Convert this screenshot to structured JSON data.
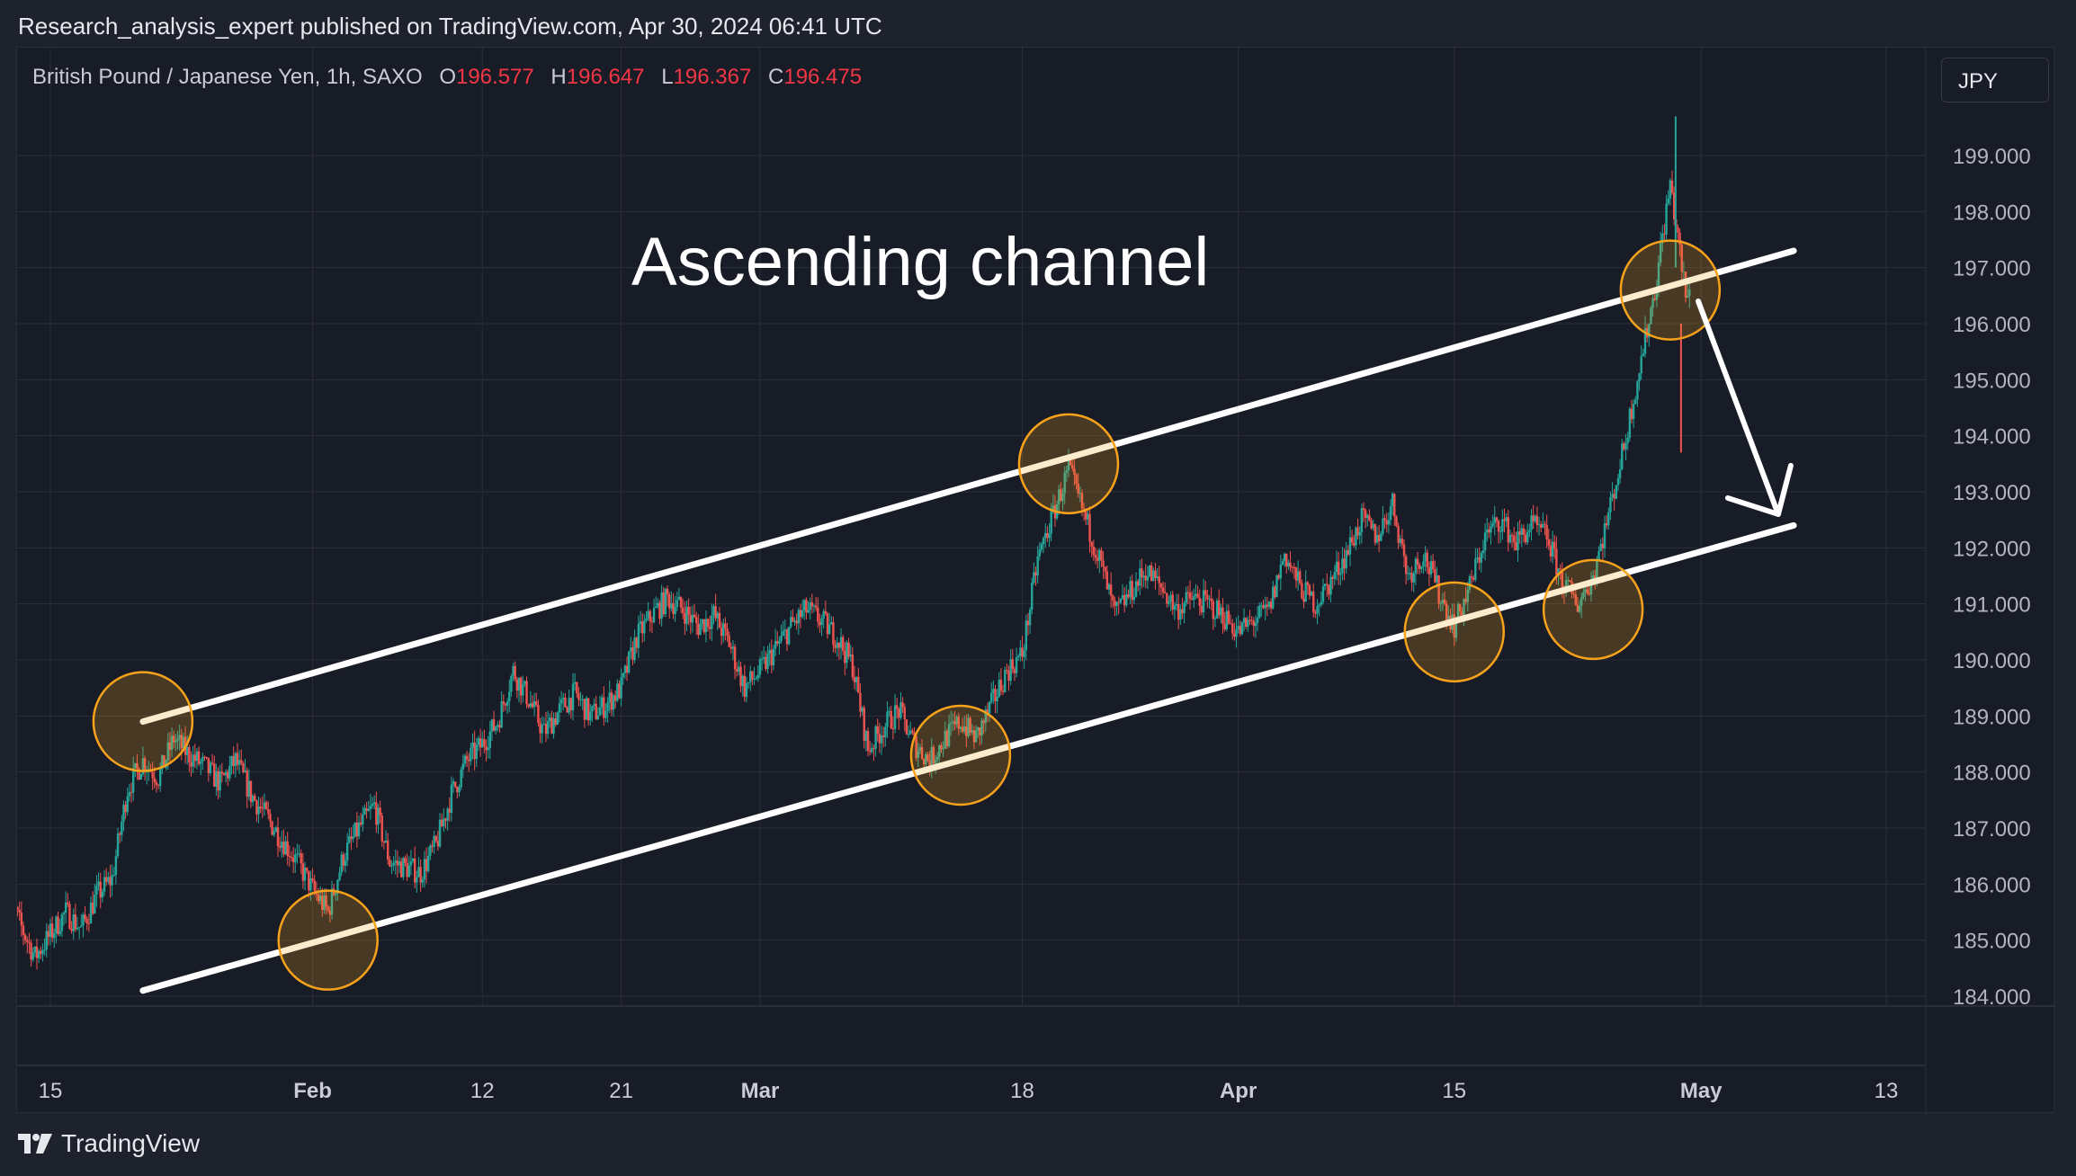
{
  "publisher_line": "Research_analysis_expert published on TradingView.com, Apr 30, 2024 06:41 UTC",
  "legend": {
    "symbol": "British Pound / Japanese Yen, 1h, SAXO",
    "open_label": "O",
    "open": "196.577",
    "high_label": "H",
    "high": "196.647",
    "low_label": "L",
    "low": "196.367",
    "close_label": "C",
    "close": "196.475"
  },
  "currency_button": "JPY",
  "annotation_title": "Ascending channel",
  "brand": "TradingView",
  "colors": {
    "background": "#181c27",
    "up": "#26a69a",
    "down": "#ef5350",
    "channel": "#ffffff",
    "circle": "#f7a21b",
    "grid": "#2a2e39",
    "axis_text": "#b2b5be",
    "legend_value": "#f23645"
  },
  "chart_data": {
    "type": "candlestick",
    "title": "",
    "ylim": [
      183.9,
      200.1
    ],
    "y_ticks": [
      "184.000",
      "185.000",
      "186.000",
      "187.000",
      "188.000",
      "189.000",
      "190.000",
      "191.000",
      "192.000",
      "193.000",
      "194.000",
      "195.000",
      "196.000",
      "197.000",
      "198.000",
      "199.000"
    ],
    "x_ticks": [
      "15",
      "Feb",
      "12",
      "21",
      "Mar",
      "18",
      "Apr",
      "15",
      "May",
      "13"
    ],
    "x_tick_dates": [
      "2024-01-15",
      "2024-02-01",
      "2024-02-12",
      "2024-02-21",
      "2024-03-01",
      "2024-03-18",
      "2024-04-01",
      "2024-04-15",
      "2024-05-01",
      "2024-05-13"
    ],
    "price_path": [
      [
        "2024-01-12",
        186.1
      ],
      [
        "2024-01-13",
        185.3
      ],
      [
        "2024-01-14",
        184.7
      ],
      [
        "2024-01-15",
        185.1
      ],
      [
        "2024-01-16",
        185.5
      ],
      [
        "2024-01-17",
        185.2
      ],
      [
        "2024-01-18",
        185.8
      ],
      [
        "2024-01-19",
        186.1
      ],
      [
        "2024-01-20",
        187.7
      ],
      [
        "2024-01-21",
        188.2
      ],
      [
        "2024-01-22",
        187.9
      ],
      [
        "2024-01-23",
        188.6
      ],
      [
        "2024-01-24",
        188.3
      ],
      [
        "2024-01-25",
        188.1
      ],
      [
        "2024-01-26",
        187.8
      ],
      [
        "2024-01-27",
        188.2
      ],
      [
        "2024-01-28",
        187.6
      ],
      [
        "2024-01-29",
        187.2
      ],
      [
        "2024-01-30",
        186.8
      ],
      [
        "2024-01-31",
        186.4
      ],
      [
        "2024-02-01",
        185.9
      ],
      [
        "2024-02-02",
        185.5
      ],
      [
        "2024-02-03",
        186.5
      ],
      [
        "2024-02-04",
        187.0
      ],
      [
        "2024-02-05",
        187.4
      ],
      [
        "2024-02-06",
        186.4
      ],
      [
        "2024-02-07",
        186.3
      ],
      [
        "2024-02-08",
        186.2
      ],
      [
        "2024-02-09",
        186.7
      ],
      [
        "2024-02-10",
        187.6
      ],
      [
        "2024-02-11",
        188.2
      ],
      [
        "2024-02-12",
        188.5
      ],
      [
        "2024-02-13",
        188.9
      ],
      [
        "2024-02-14",
        189.8
      ],
      [
        "2024-02-15",
        189.3
      ],
      [
        "2024-02-16",
        188.7
      ],
      [
        "2024-02-17",
        189.1
      ],
      [
        "2024-02-18",
        189.4
      ],
      [
        "2024-02-19",
        189.0
      ],
      [
        "2024-02-20",
        189.2
      ],
      [
        "2024-02-21",
        189.5
      ],
      [
        "2024-02-22",
        190.4
      ],
      [
        "2024-02-23",
        190.8
      ],
      [
        "2024-02-24",
        191.1
      ],
      [
        "2024-02-25",
        190.9
      ],
      [
        "2024-02-26",
        190.6
      ],
      [
        "2024-02-27",
        190.8
      ],
      [
        "2024-02-28",
        190.3
      ],
      [
        "2024-02-29",
        189.5
      ],
      [
        "2024-03-01",
        189.8
      ],
      [
        "2024-03-02",
        190.2
      ],
      [
        "2024-03-03",
        190.6
      ],
      [
        "2024-03-04",
        190.9
      ],
      [
        "2024-03-05",
        190.7
      ],
      [
        "2024-03-06",
        190.4
      ],
      [
        "2024-03-07",
        189.9
      ],
      [
        "2024-03-08",
        188.4
      ],
      [
        "2024-03-09",
        188.8
      ],
      [
        "2024-03-10",
        189.1
      ],
      [
        "2024-03-11",
        188.5
      ],
      [
        "2024-03-12",
        188.2
      ],
      [
        "2024-03-13",
        188.6
      ],
      [
        "2024-03-14",
        188.9
      ],
      [
        "2024-03-15",
        188.6
      ],
      [
        "2024-03-16",
        189.2
      ],
      [
        "2024-03-17",
        189.8
      ],
      [
        "2024-03-18",
        190.1
      ],
      [
        "2024-03-19",
        191.8
      ],
      [
        "2024-03-20",
        192.6
      ],
      [
        "2024-03-21",
        193.4
      ],
      [
        "2024-03-22",
        192.6
      ],
      [
        "2024-03-23",
        191.8
      ],
      [
        "2024-03-24",
        190.8
      ],
      [
        "2024-03-25",
        191.2
      ],
      [
        "2024-03-26",
        191.6
      ],
      [
        "2024-03-27",
        191.3
      ],
      [
        "2024-03-28",
        190.9
      ],
      [
        "2024-03-29",
        191.1
      ],
      [
        "2024-03-30",
        191.0
      ],
      [
        "2024-03-31",
        190.8
      ],
      [
        "2024-04-01",
        190.5
      ],
      [
        "2024-04-02",
        190.7
      ],
      [
        "2024-04-03",
        190.9
      ],
      [
        "2024-04-04",
        191.9
      ],
      [
        "2024-04-05",
        191.3
      ],
      [
        "2024-04-06",
        191.0
      ],
      [
        "2024-04-07",
        191.4
      ],
      [
        "2024-04-08",
        191.9
      ],
      [
        "2024-04-09",
        192.5
      ],
      [
        "2024-04-10",
        192.2
      ],
      [
        "2024-04-11",
        192.8
      ],
      [
        "2024-04-12",
        191.5
      ],
      [
        "2024-04-13",
        191.9
      ],
      [
        "2024-04-14",
        191.2
      ],
      [
        "2024-04-15",
        190.6
      ],
      [
        "2024-04-16",
        191.3
      ],
      [
        "2024-04-17",
        192.2
      ],
      [
        "2024-04-18",
        192.5
      ],
      [
        "2024-04-19",
        192.1
      ],
      [
        "2024-04-20",
        192.4
      ],
      [
        "2024-04-21",
        192.2
      ],
      [
        "2024-04-22",
        191.4
      ],
      [
        "2024-04-23",
        191.0
      ],
      [
        "2024-04-24",
        191.5
      ],
      [
        "2024-04-25",
        192.6
      ],
      [
        "2024-04-26",
        193.8
      ],
      [
        "2024-04-27",
        195.2
      ],
      [
        "2024-04-28",
        196.6
      ],
      [
        "2024-04-29",
        198.5
      ],
      [
        "2024-04-30",
        196.5
      ]
    ],
    "extremes": {
      "high": [
        [
          "2024-04-29",
          199.7
        ]
      ],
      "low": [
        [
          "2024-04-29",
          193.7
        ]
      ]
    },
    "channel_upper": [
      [
        "2024-01-21",
        188.9
      ],
      [
        "2024-05-07",
        197.3
      ]
    ],
    "channel_lower": [
      [
        "2024-01-21",
        184.1
      ],
      [
        "2024-05-07",
        192.4
      ]
    ],
    "touch_points": [
      [
        "2024-01-21",
        188.9
      ],
      [
        "2024-02-02",
        185.0
      ],
      [
        "2024-03-14",
        188.3
      ],
      [
        "2024-03-21",
        193.5
      ],
      [
        "2024-04-15",
        190.5
      ],
      [
        "2024-04-24",
        190.9
      ],
      [
        "2024-04-29",
        196.6
      ]
    ],
    "projection_arrow": [
      [
        "2024-04-30",
        196.4
      ],
      [
        "2024-05-06",
        192.6
      ]
    ],
    "grid": true
  }
}
